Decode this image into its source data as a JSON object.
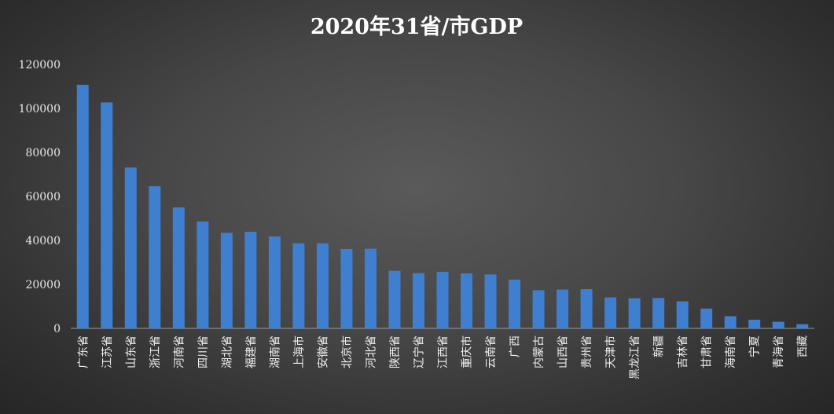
{
  "chart_data": {
    "type": "bar",
    "title": "2020年31省/市GDP",
    "xlabel": "",
    "ylabel": "",
    "ylim": [
      0,
      120000
    ],
    "yticks": [
      "0",
      "20000",
      "40000",
      "60000",
      "80000",
      "100000",
      "120000"
    ],
    "grid": false,
    "legend": "none",
    "bar_color": "#3f7fd0",
    "categories": [
      "广东省",
      "江苏省",
      "山东省",
      "浙江省",
      "河南省",
      "四川省",
      "湖北省",
      "福建省",
      "湖南省",
      "上海市",
      "安徽省",
      "北京市",
      "河北省",
      "陕西省",
      "辽宁省",
      "江西省",
      "重庆市",
      "云南省",
      "广西",
      "内蒙古",
      "山西省",
      "贵州省",
      "天津市",
      "黑龙江省",
      "新疆",
      "吉林省",
      "甘肃省",
      "海南省",
      "宁夏",
      "青海省",
      "西藏"
    ],
    "values": [
      110761,
      102719,
      73129,
      64613,
      54997,
      48599,
      43443,
      43904,
      41781,
      38701,
      38681,
      36103,
      36207,
      26182,
      25115,
      25692,
      25003,
      24522,
      22157,
      17360,
      17652,
      17827,
      14084,
      13699,
      13798,
      12311,
      9017,
      5532,
      3921,
      3006,
      1903
    ]
  }
}
